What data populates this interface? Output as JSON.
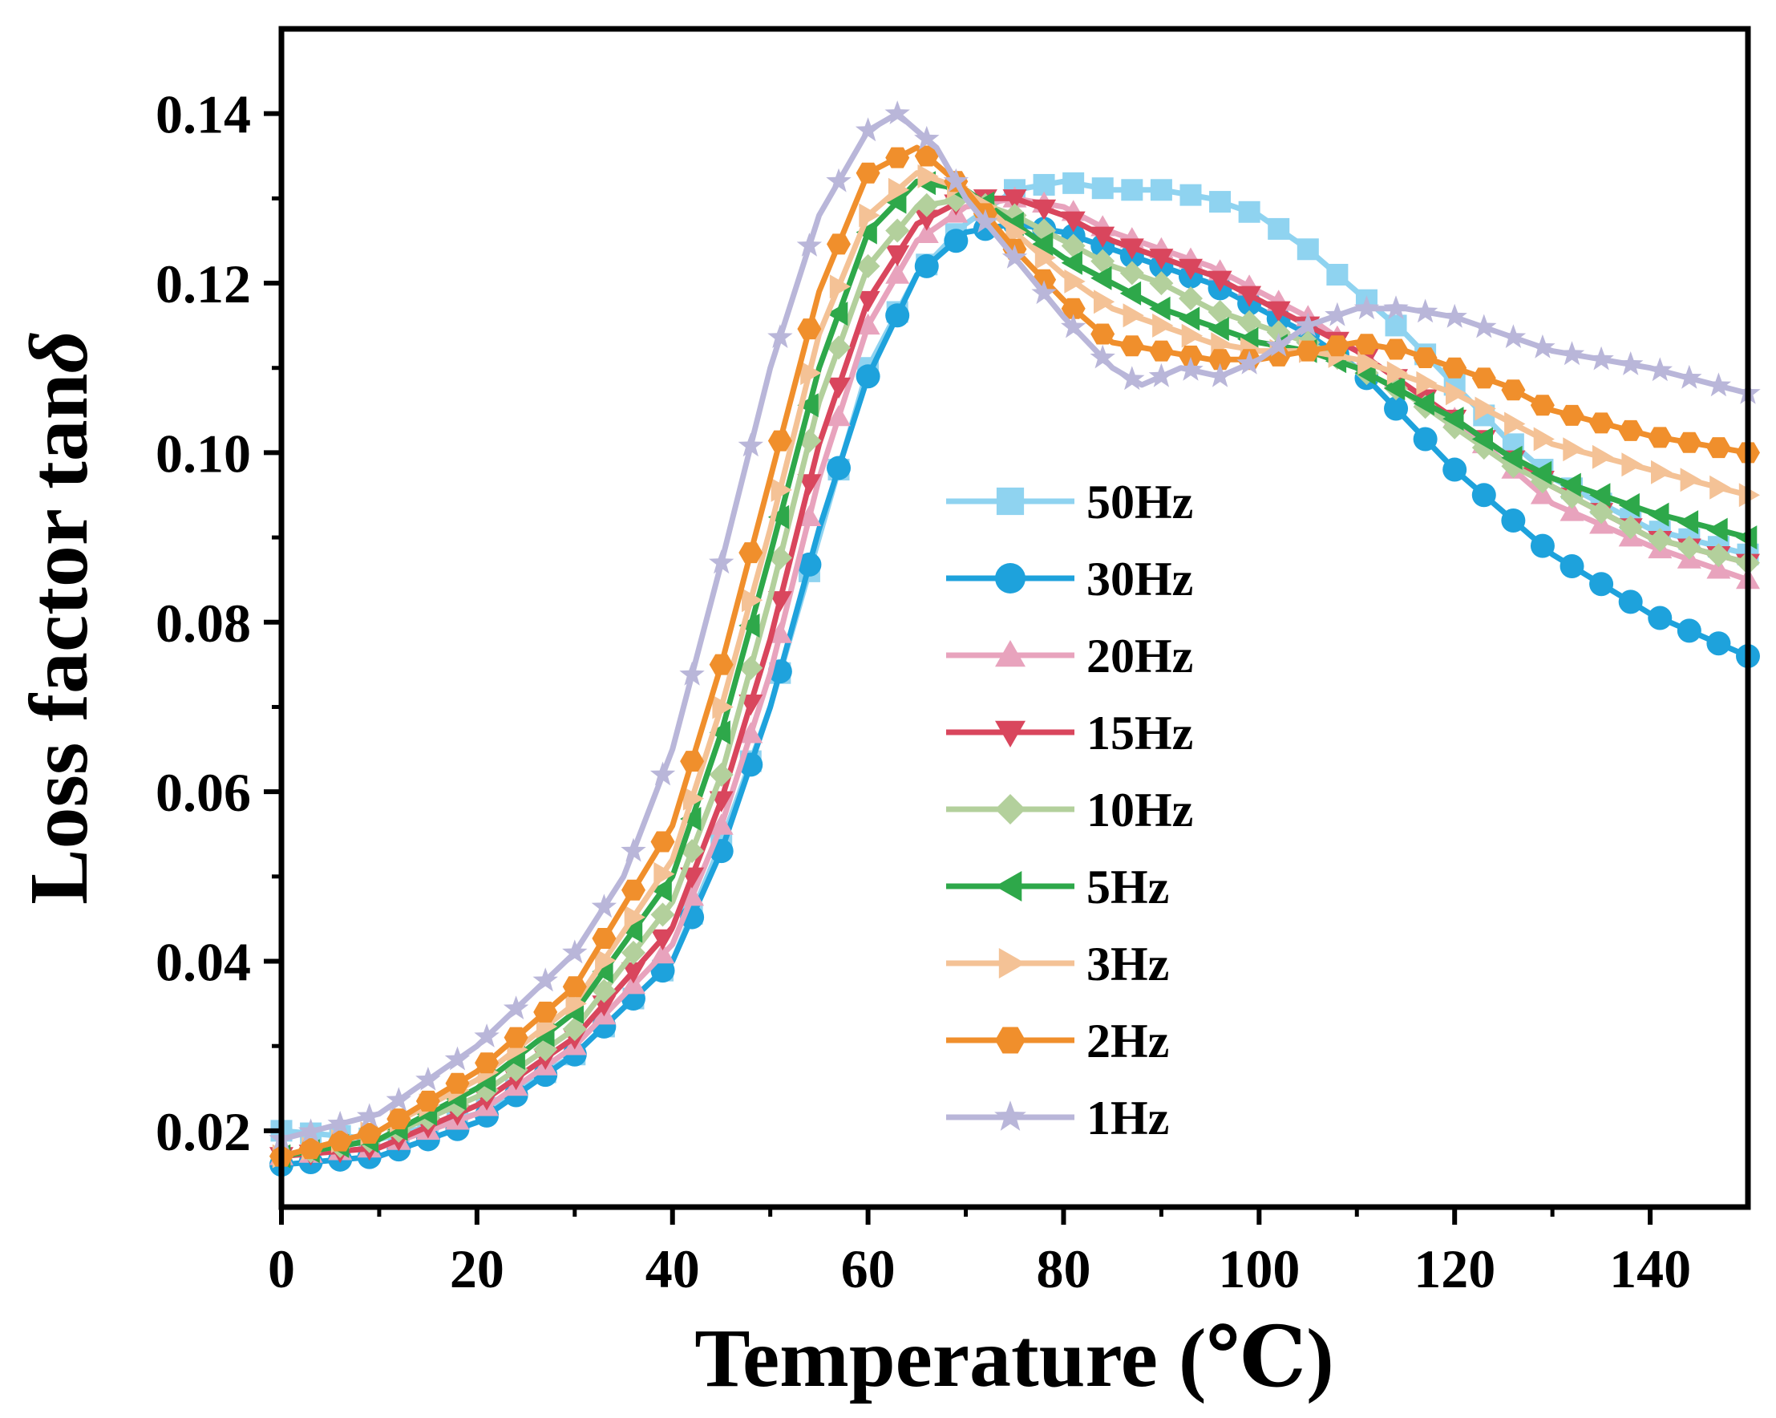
{
  "chart_data": {
    "type": "line",
    "title": "",
    "xlabel": "Temperature (℃)",
    "ylabel_main": "Loss factor tan",
    "ylabel_symbol": "δ",
    "xlim": [
      0,
      150
    ],
    "ylim": [
      0.011,
      0.15
    ],
    "xticks": [
      0,
      20,
      40,
      60,
      80,
      100,
      120,
      140
    ],
    "xtick_labels": [
      "0",
      "20",
      "40",
      "60",
      "80",
      "100",
      "120",
      "140"
    ],
    "yticks": [
      0.02,
      0.04,
      0.06,
      0.08,
      0.1,
      0.12,
      0.14
    ],
    "ytick_labels": [
      "0.02",
      "0.04",
      "0.06",
      "0.08",
      "0.10",
      "0.12",
      "0.14"
    ],
    "grid": false,
    "legend_position": "center",
    "series": [
      {
        "name": "50Hz",
        "color": "#8fd3f0",
        "marker": "square",
        "points": [
          [
            0,
            0.02
          ],
          [
            10,
            0.019
          ],
          [
            20,
            0.022
          ],
          [
            30,
            0.029
          ],
          [
            40,
            0.04
          ],
          [
            45,
            0.054
          ],
          [
            50,
            0.07
          ],
          [
            55,
            0.09
          ],
          [
            60,
            0.11
          ],
          [
            65,
            0.121
          ],
          [
            70,
            0.127
          ],
          [
            75,
            0.131
          ],
          [
            80,
            0.132
          ],
          [
            85,
            0.131
          ],
          [
            90,
            0.131
          ],
          [
            95,
            0.13
          ],
          [
            100,
            0.128
          ],
          [
            105,
            0.124
          ],
          [
            110,
            0.119
          ],
          [
            115,
            0.114
          ],
          [
            120,
            0.108
          ],
          [
            125,
            0.102
          ],
          [
            130,
            0.097
          ],
          [
            140,
            0.091
          ],
          [
            150,
            0.088
          ]
        ]
      },
      {
        "name": "30Hz",
        "color": "#1ea2dc",
        "marker": "circle",
        "points": [
          [
            0,
            0.016
          ],
          [
            10,
            0.017
          ],
          [
            20,
            0.021
          ],
          [
            30,
            0.029
          ],
          [
            40,
            0.04
          ],
          [
            45,
            0.053
          ],
          [
            50,
            0.07
          ],
          [
            55,
            0.091
          ],
          [
            60,
            0.109
          ],
          [
            65,
            0.121
          ],
          [
            70,
            0.126
          ],
          [
            75,
            0.127
          ],
          [
            80,
            0.126
          ],
          [
            85,
            0.124
          ],
          [
            90,
            0.122
          ],
          [
            95,
            0.12
          ],
          [
            100,
            0.117
          ],
          [
            105,
            0.114
          ],
          [
            110,
            0.11
          ],
          [
            115,
            0.104
          ],
          [
            120,
            0.098
          ],
          [
            125,
            0.093
          ],
          [
            130,
            0.088
          ],
          [
            140,
            0.081
          ],
          [
            150,
            0.076
          ]
        ]
      },
      {
        "name": "20Hz",
        "color": "#e8a3bd",
        "marker": "triangle-up",
        "points": [
          [
            0,
            0.017
          ],
          [
            10,
            0.018
          ],
          [
            20,
            0.022
          ],
          [
            30,
            0.03
          ],
          [
            40,
            0.042
          ],
          [
            45,
            0.056
          ],
          [
            50,
            0.074
          ],
          [
            55,
            0.097
          ],
          [
            60,
            0.115
          ],
          [
            65,
            0.125
          ],
          [
            70,
            0.129
          ],
          [
            75,
            0.13
          ],
          [
            80,
            0.129
          ],
          [
            85,
            0.126
          ],
          [
            90,
            0.124
          ],
          [
            95,
            0.122
          ],
          [
            100,
            0.119
          ],
          [
            105,
            0.116
          ],
          [
            110,
            0.112
          ],
          [
            115,
            0.108
          ],
          [
            120,
            0.104
          ],
          [
            125,
            0.099
          ],
          [
            130,
            0.094
          ],
          [
            140,
            0.089
          ],
          [
            150,
            0.085
          ]
        ]
      },
      {
        "name": "15Hz",
        "color": "#d9465d",
        "marker": "triangle-down",
        "points": [
          [
            0,
            0.017
          ],
          [
            10,
            0.018
          ],
          [
            20,
            0.023
          ],
          [
            30,
            0.031
          ],
          [
            40,
            0.044
          ],
          [
            45,
            0.059
          ],
          [
            50,
            0.078
          ],
          [
            55,
            0.101
          ],
          [
            60,
            0.118
          ],
          [
            65,
            0.127
          ],
          [
            70,
            0.13
          ],
          [
            75,
            0.13
          ],
          [
            80,
            0.128
          ],
          [
            85,
            0.125
          ],
          [
            90,
            0.123
          ],
          [
            95,
            0.121
          ],
          [
            100,
            0.118
          ],
          [
            105,
            0.115
          ],
          [
            110,
            0.112
          ],
          [
            115,
            0.108
          ],
          [
            120,
            0.104
          ],
          [
            125,
            0.1
          ],
          [
            130,
            0.096
          ],
          [
            140,
            0.09
          ],
          [
            150,
            0.087
          ]
        ]
      },
      {
        "name": "10Hz",
        "color": "#b3d09c",
        "marker": "diamond",
        "points": [
          [
            0,
            0.017
          ],
          [
            10,
            0.019
          ],
          [
            20,
            0.024
          ],
          [
            30,
            0.032
          ],
          [
            40,
            0.047
          ],
          [
            45,
            0.062
          ],
          [
            50,
            0.083
          ],
          [
            55,
            0.106
          ],
          [
            60,
            0.122
          ],
          [
            65,
            0.129
          ],
          [
            70,
            0.13
          ],
          [
            75,
            0.128
          ],
          [
            80,
            0.125
          ],
          [
            85,
            0.122
          ],
          [
            90,
            0.12
          ],
          [
            95,
            0.117
          ],
          [
            100,
            0.115
          ],
          [
            105,
            0.113
          ],
          [
            110,
            0.11
          ],
          [
            115,
            0.107
          ],
          [
            120,
            0.103
          ],
          [
            125,
            0.099
          ],
          [
            130,
            0.096
          ],
          [
            140,
            0.09
          ],
          [
            150,
            0.087
          ]
        ]
      },
      {
        "name": "5Hz",
        "color": "#2ea84a",
        "marker": "triangle-left",
        "points": [
          [
            0,
            0.017
          ],
          [
            10,
            0.019
          ],
          [
            20,
            0.025
          ],
          [
            30,
            0.034
          ],
          [
            40,
            0.05
          ],
          [
            45,
            0.067
          ],
          [
            50,
            0.088
          ],
          [
            55,
            0.11
          ],
          [
            60,
            0.126
          ],
          [
            65,
            0.132
          ],
          [
            70,
            0.131
          ],
          [
            75,
            0.127
          ],
          [
            80,
            0.123
          ],
          [
            85,
            0.12
          ],
          [
            90,
            0.117
          ],
          [
            95,
            0.115
          ],
          [
            100,
            0.113
          ],
          [
            105,
            0.112
          ],
          [
            110,
            0.11
          ],
          [
            115,
            0.107
          ],
          [
            120,
            0.104
          ],
          [
            125,
            0.1
          ],
          [
            130,
            0.097
          ],
          [
            140,
            0.093
          ],
          [
            150,
            0.09
          ]
        ]
      },
      {
        "name": "3Hz",
        "color": "#f4c296",
        "marker": "triangle-right",
        "points": [
          [
            0,
            0.017
          ],
          [
            10,
            0.02
          ],
          [
            20,
            0.026
          ],
          [
            30,
            0.035
          ],
          [
            40,
            0.052
          ],
          [
            45,
            0.07
          ],
          [
            50,
            0.091
          ],
          [
            55,
            0.114
          ],
          [
            60,
            0.128
          ],
          [
            65,
            0.133
          ],
          [
            70,
            0.131
          ],
          [
            75,
            0.126
          ],
          [
            80,
            0.121
          ],
          [
            85,
            0.117
          ],
          [
            90,
            0.115
          ],
          [
            95,
            0.113
          ],
          [
            100,
            0.112
          ],
          [
            105,
            0.112
          ],
          [
            110,
            0.111
          ],
          [
            115,
            0.109
          ],
          [
            120,
            0.107
          ],
          [
            125,
            0.104
          ],
          [
            130,
            0.101
          ],
          [
            140,
            0.098
          ],
          [
            150,
            0.095
          ]
        ]
      },
      {
        "name": "2Hz",
        "color": "#f08f2c",
        "marker": "hexagon",
        "points": [
          [
            0,
            0.017
          ],
          [
            10,
            0.02
          ],
          [
            20,
            0.027
          ],
          [
            30,
            0.037
          ],
          [
            40,
            0.056
          ],
          [
            45,
            0.075
          ],
          [
            50,
            0.097
          ],
          [
            55,
            0.119
          ],
          [
            60,
            0.133
          ],
          [
            65,
            0.136
          ],
          [
            70,
            0.131
          ],
          [
            75,
            0.124
          ],
          [
            80,
            0.118
          ],
          [
            85,
            0.113
          ],
          [
            90,
            0.112
          ],
          [
            95,
            0.111
          ],
          [
            100,
            0.111
          ],
          [
            105,
            0.112
          ],
          [
            110,
            0.113
          ],
          [
            115,
            0.112
          ],
          [
            120,
            0.11
          ],
          [
            125,
            0.108
          ],
          [
            130,
            0.105
          ],
          [
            140,
            0.102
          ],
          [
            150,
            0.1
          ]
        ]
      },
      {
        "name": "1Hz",
        "color": "#b9b6d9",
        "marker": "star",
        "points": [
          [
            0,
            0.019
          ],
          [
            10,
            0.022
          ],
          [
            20,
            0.03
          ],
          [
            30,
            0.041
          ],
          [
            35,
            0.05
          ],
          [
            40,
            0.065
          ],
          [
            45,
            0.087
          ],
          [
            50,
            0.11
          ],
          [
            55,
            0.128
          ],
          [
            60,
            0.138
          ],
          [
            63,
            0.14
          ],
          [
            67,
            0.136
          ],
          [
            70,
            0.13
          ],
          [
            75,
            0.123
          ],
          [
            80,
            0.116
          ],
          [
            85,
            0.11
          ],
          [
            88,
            0.108
          ],
          [
            92,
            0.11
          ],
          [
            96,
            0.109
          ],
          [
            100,
            0.111
          ],
          [
            105,
            0.115
          ],
          [
            110,
            0.117
          ],
          [
            115,
            0.117
          ],
          [
            120,
            0.116
          ],
          [
            125,
            0.114
          ],
          [
            130,
            0.112
          ],
          [
            140,
            0.11
          ],
          [
            150,
            0.107
          ]
        ]
      }
    ]
  }
}
